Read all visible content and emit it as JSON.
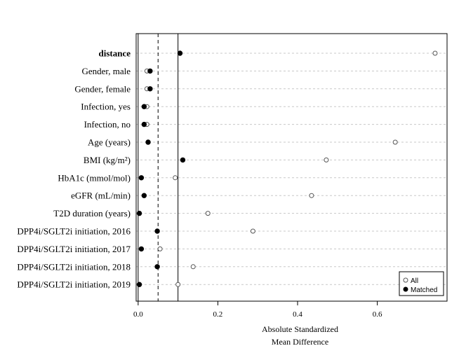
{
  "chart_data": {
    "type": "scatter",
    "xlabel_line1": "Absolute Standardized",
    "xlabel_line2": "Mean Difference",
    "xlim": [
      -0.005,
      0.775
    ],
    "xticks": [
      "0.0",
      "0.2",
      "0.4",
      "0.6"
    ],
    "reference_lines": [
      {
        "x": 0.05,
        "style": "dashed"
      },
      {
        "x": 0.1,
        "style": "solid"
      }
    ],
    "categories": [
      "distance",
      "Gender, male",
      "Gender, female",
      "Infection, yes",
      "Infection, no",
      "Age (years)",
      "BMI (kg/m²)",
      "HbA1c (mmol/mol)",
      "eGFR (mL/min)",
      "T2D duration (years)",
      "DPP4i/SGLT2i initiation, 2016",
      "DPP4i/SGLT2i initiation, 2017",
      "DPP4i/SGLT2i initiation, 2018",
      "DPP4i/SGLT2i initiation, 2019"
    ],
    "series": [
      {
        "name": "All",
        "marker": "open-circle",
        "values": [
          0.745,
          0.022,
          0.022,
          0.022,
          0.022,
          0.645,
          0.472,
          0.093,
          0.435,
          0.175,
          0.288,
          0.055,
          0.138,
          0.1
        ]
      },
      {
        "name": "Matched",
        "marker": "filled-circle",
        "values": [
          0.105,
          0.03,
          0.03,
          0.015,
          0.015,
          0.025,
          0.112,
          0.008,
          0.015,
          0.003,
          0.048,
          0.008,
          0.048,
          0.003
        ]
      }
    ],
    "legend": {
      "position": "bottom-right",
      "entries": [
        "All",
        "Matched"
      ]
    }
  }
}
